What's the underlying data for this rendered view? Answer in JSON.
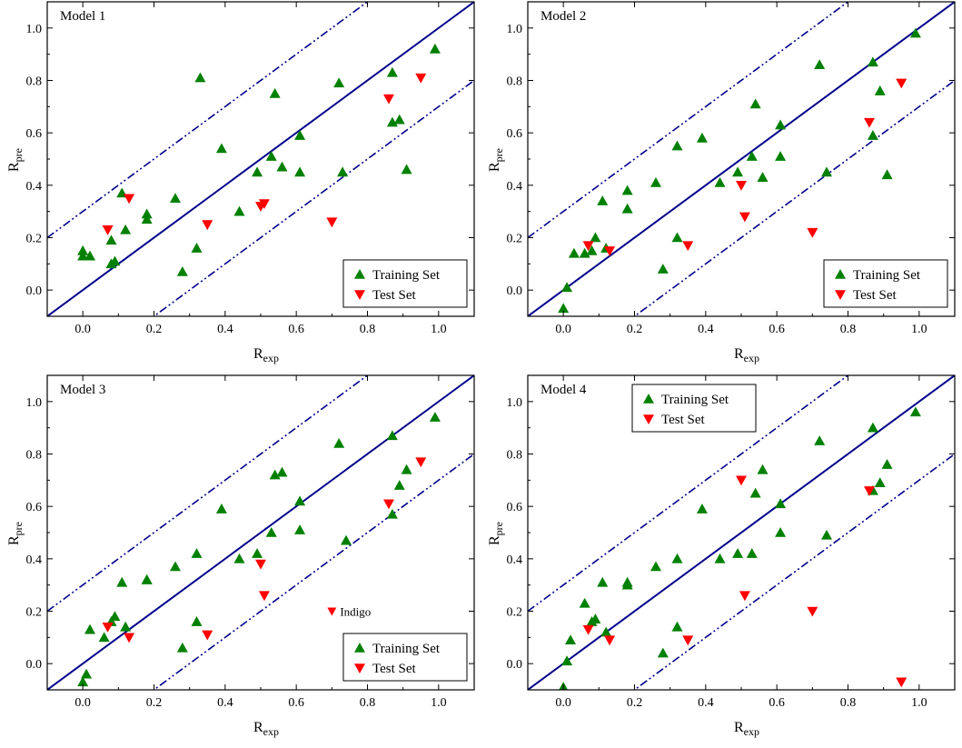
{
  "chart_data": [
    {
      "type": "scatter",
      "title": "Model 1",
      "xlabel": "R",
      "xlabel_sub": "exp",
      "ylabel": "R",
      "ylabel_sub": "pre",
      "xlim": [
        -0.1,
        1.1
      ],
      "ylim": [
        -0.1,
        1.1
      ],
      "xticks": [
        "0.0",
        "0.2",
        "0.4",
        "0.6",
        "0.8",
        "1.0"
      ],
      "yticks": [
        "0.0",
        "0.2",
        "0.4",
        "0.6",
        "0.8",
        "1.0"
      ],
      "legend_position": "bottom-right",
      "legend": [
        "Training Set",
        "Test Set"
      ],
      "reference_lines": {
        "identity_offset": 0.0,
        "band_offsets": [
          0.3,
          -0.3
        ]
      },
      "series": [
        {
          "name": "Training Set",
          "marker": "triangle-up",
          "color": "#008000",
          "points": [
            [
              0.0,
              0.15
            ],
            [
              0.0,
              0.13
            ],
            [
              0.02,
              0.13
            ],
            [
              0.08,
              0.1
            ],
            [
              0.08,
              0.19
            ],
            [
              0.09,
              0.11
            ],
            [
              0.11,
              0.37
            ],
            [
              0.12,
              0.23
            ],
            [
              0.18,
              0.27
            ],
            [
              0.18,
              0.29
            ],
            [
              0.26,
              0.35
            ],
            [
              0.28,
              0.07
            ],
            [
              0.32,
              0.16
            ],
            [
              0.33,
              0.81
            ],
            [
              0.39,
              0.54
            ],
            [
              0.44,
              0.3
            ],
            [
              0.49,
              0.45
            ],
            [
              0.53,
              0.51
            ],
            [
              0.54,
              0.75
            ],
            [
              0.56,
              0.47
            ],
            [
              0.61,
              0.45
            ],
            [
              0.61,
              0.59
            ],
            [
              0.72,
              0.79
            ],
            [
              0.73,
              0.45
            ],
            [
              0.87,
              0.83
            ],
            [
              0.87,
              0.64
            ],
            [
              0.89,
              0.65
            ],
            [
              0.91,
              0.46
            ],
            [
              0.99,
              0.92
            ]
          ]
        },
        {
          "name": "Test Set",
          "marker": "triangle-down",
          "color": "#ff0000",
          "points": [
            [
              0.07,
              0.23
            ],
            [
              0.13,
              0.35
            ],
            [
              0.35,
              0.25
            ],
            [
              0.5,
              0.32
            ],
            [
              0.51,
              0.33
            ],
            [
              0.7,
              0.26
            ],
            [
              0.86,
              0.73
            ],
            [
              0.95,
              0.81
            ]
          ]
        }
      ]
    },
    {
      "type": "scatter",
      "title": "Model 2",
      "xlabel": "R",
      "xlabel_sub": "exp",
      "ylabel": "R",
      "ylabel_sub": "pre",
      "xlim": [
        -0.1,
        1.1
      ],
      "ylim": [
        -0.1,
        1.1
      ],
      "xticks": [
        "0.0",
        "0.2",
        "0.4",
        "0.6",
        "0.8",
        "1.0"
      ],
      "yticks": [
        "0.0",
        "0.2",
        "0.4",
        "0.6",
        "0.8",
        "1.0"
      ],
      "legend_position": "bottom-right",
      "legend": [
        "Training Set",
        "Test Set"
      ],
      "reference_lines": {
        "identity_offset": 0.0,
        "band_offsets": [
          0.3,
          -0.3
        ]
      },
      "series": [
        {
          "name": "Training Set",
          "marker": "triangle-up",
          "color": "#008000",
          "points": [
            [
              0.0,
              -0.07
            ],
            [
              0.01,
              0.01
            ],
            [
              0.03,
              0.14
            ],
            [
              0.06,
              0.14
            ],
            [
              0.08,
              0.15
            ],
            [
              0.09,
              0.2
            ],
            [
              0.11,
              0.34
            ],
            [
              0.12,
              0.16
            ],
            [
              0.18,
              0.38
            ],
            [
              0.18,
              0.31
            ],
            [
              0.26,
              0.41
            ],
            [
              0.28,
              0.08
            ],
            [
              0.32,
              0.55
            ],
            [
              0.32,
              0.2
            ],
            [
              0.39,
              0.58
            ],
            [
              0.44,
              0.41
            ],
            [
              0.49,
              0.45
            ],
            [
              0.53,
              0.51
            ],
            [
              0.54,
              0.71
            ],
            [
              0.56,
              0.43
            ],
            [
              0.61,
              0.51
            ],
            [
              0.61,
              0.63
            ],
            [
              0.72,
              0.86
            ],
            [
              0.74,
              0.45
            ],
            [
              0.87,
              0.87
            ],
            [
              0.87,
              0.59
            ],
            [
              0.89,
              0.76
            ],
            [
              0.91,
              0.44
            ],
            [
              0.99,
              0.98
            ]
          ]
        },
        {
          "name": "Test Set",
          "marker": "triangle-down",
          "color": "#ff0000",
          "points": [
            [
              0.07,
              0.17
            ],
            [
              0.13,
              0.15
            ],
            [
              0.35,
              0.17
            ],
            [
              0.5,
              0.4
            ],
            [
              0.51,
              0.28
            ],
            [
              0.7,
              0.22
            ],
            [
              0.86,
              0.64
            ],
            [
              0.95,
              0.79
            ]
          ]
        }
      ]
    },
    {
      "type": "scatter",
      "title": "Model 3",
      "xlabel": "R",
      "xlabel_sub": "exp",
      "ylabel": "R",
      "ylabel_sub": "pre",
      "xlim": [
        -0.1,
        1.1
      ],
      "ylim": [
        -0.1,
        1.1
      ],
      "xticks": [
        "0.0",
        "0.2",
        "0.4",
        "0.6",
        "0.8",
        "1.0"
      ],
      "yticks": [
        "0.0",
        "0.2",
        "0.4",
        "0.6",
        "0.8",
        "1.0"
      ],
      "legend_position": "bottom-right",
      "legend": [
        "Training Set",
        "Test Set"
      ],
      "annotation": {
        "text": "Indigo",
        "marker": "triangle-down",
        "color": "#ff0000",
        "x": 0.7,
        "y": 0.2
      },
      "reference_lines": {
        "identity_offset": 0.0,
        "band_offsets": [
          0.3,
          -0.3
        ]
      },
      "series": [
        {
          "name": "Training Set",
          "marker": "triangle-up",
          "color": "#008000",
          "points": [
            [
              0.0,
              -0.07
            ],
            [
              0.01,
              -0.04
            ],
            [
              0.02,
              0.13
            ],
            [
              0.06,
              0.1
            ],
            [
              0.08,
              0.16
            ],
            [
              0.09,
              0.18
            ],
            [
              0.11,
              0.31
            ],
            [
              0.12,
              0.14
            ],
            [
              0.18,
              0.32
            ],
            [
              0.18,
              0.32
            ],
            [
              0.26,
              0.37
            ],
            [
              0.28,
              0.06
            ],
            [
              0.32,
              0.42
            ],
            [
              0.32,
              0.16
            ],
            [
              0.39,
              0.59
            ],
            [
              0.44,
              0.4
            ],
            [
              0.49,
              0.42
            ],
            [
              0.53,
              0.5
            ],
            [
              0.54,
              0.72
            ],
            [
              0.56,
              0.73
            ],
            [
              0.61,
              0.51
            ],
            [
              0.61,
              0.62
            ],
            [
              0.72,
              0.84
            ],
            [
              0.74,
              0.47
            ],
            [
              0.87,
              0.87
            ],
            [
              0.87,
              0.57
            ],
            [
              0.89,
              0.68
            ],
            [
              0.91,
              0.74
            ],
            [
              0.99,
              0.94
            ]
          ]
        },
        {
          "name": "Test Set",
          "marker": "triangle-down",
          "color": "#ff0000",
          "points": [
            [
              0.07,
              0.14
            ],
            [
              0.13,
              0.1
            ],
            [
              0.35,
              0.11
            ],
            [
              0.5,
              0.38
            ],
            [
              0.51,
              0.26
            ],
            [
              0.86,
              0.61
            ],
            [
              0.95,
              0.77
            ]
          ]
        }
      ]
    },
    {
      "type": "scatter",
      "title": "Model 4",
      "xlabel": "R",
      "xlabel_sub": "exp",
      "ylabel": "R",
      "ylabel_sub": "pre",
      "xlim": [
        -0.1,
        1.1
      ],
      "ylim": [
        -0.1,
        1.1
      ],
      "xticks": [
        "0.0",
        "0.2",
        "0.4",
        "0.6",
        "0.8",
        "1.0"
      ],
      "yticks": [
        "0.0",
        "0.2",
        "0.4",
        "0.6",
        "0.8",
        "1.0"
      ],
      "legend_position": "top-left",
      "legend": [
        "Training Set",
        "Test Set"
      ],
      "reference_lines": {
        "identity_offset": 0.0,
        "band_offsets": [
          0.3,
          -0.3
        ]
      },
      "series": [
        {
          "name": "Training Set",
          "marker": "triangle-up",
          "color": "#008000",
          "points": [
            [
              0.0,
              -0.09
            ],
            [
              0.01,
              0.01
            ],
            [
              0.02,
              0.09
            ],
            [
              0.06,
              0.23
            ],
            [
              0.08,
              0.16
            ],
            [
              0.09,
              0.17
            ],
            [
              0.11,
              0.31
            ],
            [
              0.12,
              0.12
            ],
            [
              0.18,
              0.3
            ],
            [
              0.18,
              0.31
            ],
            [
              0.26,
              0.37
            ],
            [
              0.28,
              0.04
            ],
            [
              0.32,
              0.4
            ],
            [
              0.32,
              0.14
            ],
            [
              0.39,
              0.59
            ],
            [
              0.44,
              0.4
            ],
            [
              0.49,
              0.42
            ],
            [
              0.53,
              0.42
            ],
            [
              0.54,
              0.65
            ],
            [
              0.56,
              0.74
            ],
            [
              0.61,
              0.5
            ],
            [
              0.61,
              0.61
            ],
            [
              0.72,
              0.85
            ],
            [
              0.74,
              0.49
            ],
            [
              0.87,
              0.9
            ],
            [
              0.87,
              0.66
            ],
            [
              0.89,
              0.69
            ],
            [
              0.91,
              0.76
            ],
            [
              0.99,
              0.96
            ]
          ]
        },
        {
          "name": "Test Set",
          "marker": "triangle-down",
          "color": "#ff0000",
          "points": [
            [
              0.07,
              0.13
            ],
            [
              0.13,
              0.09
            ],
            [
              0.35,
              0.09
            ],
            [
              0.5,
              0.7
            ],
            [
              0.51,
              0.26
            ],
            [
              0.7,
              0.2
            ],
            [
              0.86,
              0.66
            ],
            [
              0.95,
              -0.07
            ]
          ]
        }
      ]
    }
  ]
}
